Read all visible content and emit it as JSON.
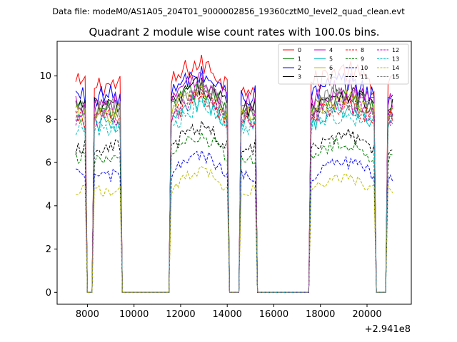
{
  "figure": {
    "suptitle": "Data file: modeM0/AS1A05_204T01_9000002856_19360cztM0_level2_quad_clean.evt"
  },
  "chart_data": {
    "type": "line",
    "title": "Quadrant 2 module wise count rates with 100.0s bins.",
    "xlabel": "",
    "ylabel": "",
    "x_offset_label": "+2.941e8",
    "x_range": [
      6700,
      21900
    ],
    "y_range": [
      -0.55,
      11.6
    ],
    "x_ticks": [
      8000,
      10000,
      12000,
      14000,
      16000,
      18000,
      20000
    ],
    "x_tick_labels": [
      "8000",
      "10000",
      "12000",
      "14000",
      "16000",
      "18000",
      "20000"
    ],
    "y_ticks": [
      0,
      2,
      4,
      6,
      8,
      10
    ],
    "y_tick_labels": [
      "0",
      "2",
      "4",
      "6",
      "8",
      "10"
    ],
    "bin_seconds": 100,
    "segments": [
      {
        "start": 7500,
        "end": 7900,
        "seed": 1
      },
      {
        "start": 8300,
        "end": 9400,
        "seed": 2
      },
      {
        "start": 11600,
        "end": 14000,
        "seed": 3
      },
      {
        "start": 14600,
        "end": 15200,
        "seed": 4
      },
      {
        "start": 17600,
        "end": 20300,
        "seed": 5
      },
      {
        "start": 20900,
        "end": 21100,
        "seed": 6
      }
    ],
    "zero_range": [
      7500,
      21100
    ],
    "series": [
      {
        "name": "0",
        "color": "#ff0000",
        "dash": "solid",
        "level": 9.6
      },
      {
        "name": "1",
        "color": "#008000",
        "dash": "solid",
        "level": 8.4
      },
      {
        "name": "2",
        "color": "#0000ff",
        "dash": "solid",
        "level": 9.1
      },
      {
        "name": "3",
        "color": "#000000",
        "dash": "solid",
        "level": 8.6
      },
      {
        "name": "4",
        "color": "#bf00bf",
        "dash": "solid",
        "level": 8.8
      },
      {
        "name": "5",
        "color": "#00bfbf",
        "dash": "solid",
        "level": 7.8
      },
      {
        "name": "6",
        "color": "#bfbf00",
        "dash": "solid",
        "level": 8.3
      },
      {
        "name": "7",
        "color": "#808080",
        "dash": "solid",
        "level": 8.5
      },
      {
        "name": "8",
        "color": "#ff0000",
        "dash": "dashed",
        "level": 8.0
      },
      {
        "name": "9",
        "color": "#008000",
        "dash": "dashed",
        "level": 6.2
      },
      {
        "name": "10",
        "color": "#0000ff",
        "dash": "dashed",
        "level": 5.4
      },
      {
        "name": "11",
        "color": "#000000",
        "dash": "dashed",
        "level": 6.7
      },
      {
        "name": "12",
        "color": "#bf00bf",
        "dash": "dashed",
        "level": 8.1
      },
      {
        "name": "13",
        "color": "#00bfbf",
        "dash": "dashed",
        "level": 7.6
      },
      {
        "name": "14",
        "color": "#bfbf00",
        "dash": "dashed",
        "level": 4.7
      },
      {
        "name": "15",
        "color": "#808080",
        "dash": "dashed",
        "level": 8.2
      }
    ],
    "legend": {
      "placement": "top-right",
      "columns": 4
    }
  }
}
